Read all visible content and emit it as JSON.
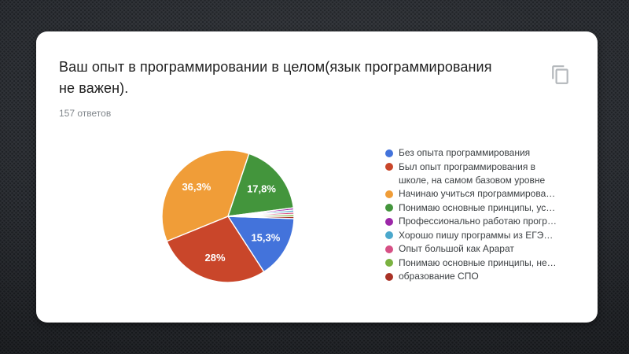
{
  "page": {
    "background_color": "#2e3136"
  },
  "question_card": {
    "title": "Ваш опыт в программировании в целом(язык программирования не важен).",
    "title_lines": [
      "Ваш опыт в программировании в целом(язык программирования",
      "не важен)."
    ],
    "responses_count": "157 ответов",
    "copy_button_icon": "content-copy-icon"
  },
  "chart_data": {
    "type": "pie",
    "title": "Ваш опыт в программировании в целом(язык программирования не важен).",
    "responses_total": 157,
    "legend_position": "right",
    "start_angle_deg": 92,
    "direction": "clockwise",
    "slices": [
      {
        "label": "Без опыта программирования",
        "pct": 15.3,
        "pct_label": "15,3%",
        "color": "#4373DB"
      },
      {
        "label": "Был опыт программирования в школе, на самом базовом уровне",
        "pct": 28,
        "pct_label": "28%",
        "color": "#C9462A"
      },
      {
        "label": "Начинаю учиться программирова…",
        "pct": 36.3,
        "pct_label": "36,3%",
        "color": "#F09D38"
      },
      {
        "label": "Понимаю основные принципы, ус…",
        "pct": 17.8,
        "pct_label": "17,8%",
        "color": "#43953C"
      },
      {
        "label": "Профессионально работаю прогр…",
        "pct": 0.52,
        "pct_label": "",
        "color": "#9C27A8"
      },
      {
        "label": "Хорошо пишу программы из ЕГЭ…",
        "pct": 0.52,
        "pct_label": "",
        "color": "#4BA8CC"
      },
      {
        "label": "Опыт большой как Арарат",
        "pct": 0.52,
        "pct_label": "",
        "color": "#D65085"
      },
      {
        "label": "Понимаю основные принципы, не…",
        "pct": 0.52,
        "pct_label": "",
        "color": "#7BB241"
      },
      {
        "label": "образование СПО",
        "pct": 0.52,
        "pct_label": "",
        "color": "#A93226"
      }
    ]
  }
}
